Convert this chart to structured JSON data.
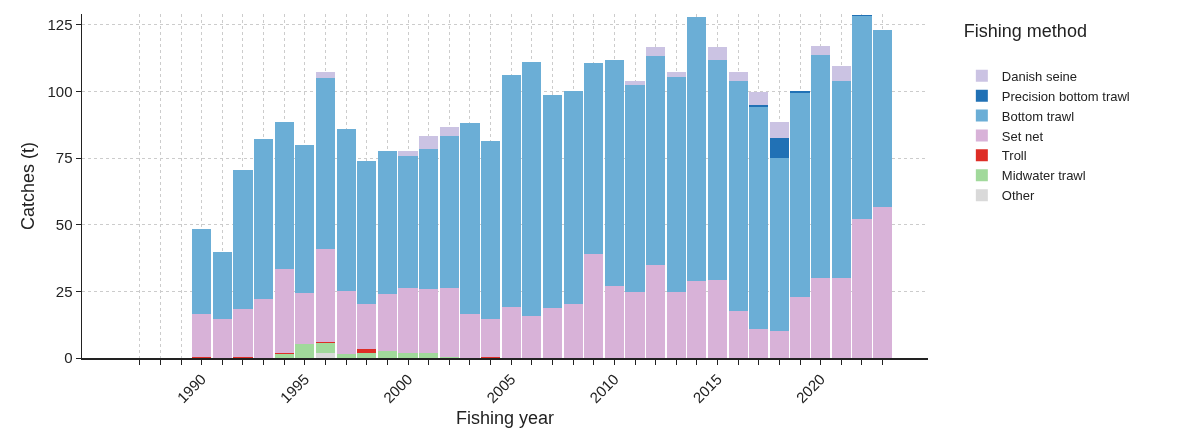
{
  "chart_data": {
    "type": "bar",
    "stacked": true,
    "xlabel": "Fishing year",
    "ylabel": "Catches (t)",
    "legend_title": "Fishing method",
    "legend": "right",
    "grid": true,
    "x": [
      1990,
      1991,
      1992,
      1993,
      1994,
      1995,
      1996,
      1997,
      1998,
      1999,
      2000,
      2001,
      2002,
      2003,
      2004,
      2005,
      2006,
      2007,
      2008,
      2009,
      2010,
      2011,
      2012,
      2013,
      2014,
      2015,
      2016,
      2017,
      2018,
      2019,
      2020,
      2021,
      2022,
      2023
    ],
    "xlim": [
      1984.2,
      2025.2
    ],
    "xticks": [
      {
        "value": 1987,
        "label": null
      },
      {
        "value": 1988,
        "label": null
      },
      {
        "value": 1989,
        "label": null
      },
      1990,
      {
        "value": 1991,
        "label": null
      },
      {
        "value": 1992,
        "label": null
      },
      {
        "value": 1993,
        "label": null
      },
      {
        "value": 1994,
        "label": null
      },
      1995,
      {
        "value": 1996,
        "label": null
      },
      {
        "value": 1997,
        "label": null
      },
      {
        "value": 1998,
        "label": null
      },
      {
        "value": 1999,
        "label": null
      },
      2000,
      {
        "value": 2001,
        "label": null
      },
      {
        "value": 2002,
        "label": null
      },
      {
        "value": 2003,
        "label": null
      },
      {
        "value": 2004,
        "label": null
      },
      2005,
      {
        "value": 2006,
        "label": null
      },
      {
        "value": 2007,
        "label": null
      },
      {
        "value": 2008,
        "label": null
      },
      {
        "value": 2009,
        "label": null
      },
      2010,
      {
        "value": 2011,
        "label": null
      },
      {
        "value": 2012,
        "label": null
      },
      {
        "value": 2013,
        "label": null
      },
      {
        "value": 2014,
        "label": null
      },
      2015,
      {
        "value": 2016,
        "label": null
      },
      {
        "value": 2017,
        "label": null
      },
      {
        "value": 2018,
        "label": null
      },
      {
        "value": 2019,
        "label": null
      },
      2020,
      {
        "value": 2021,
        "label": null
      },
      {
        "value": 2022,
        "label": null
      },
      {
        "value": 2023,
        "label": null
      }
    ],
    "ylim": [
      0,
      129
    ],
    "yticks": [
      0,
      25,
      50,
      75,
      100,
      125
    ],
    "series": [
      {
        "name": "Other",
        "color": "#d9d9d9",
        "values": [
          null,
          null,
          null,
          null,
          null,
          null,
          2,
          null,
          null,
          null,
          null,
          null,
          null,
          null,
          null,
          null,
          null,
          null,
          null,
          null,
          null,
          null,
          null,
          null,
          null,
          null,
          null,
          null,
          null,
          null,
          null,
          null,
          null,
          null
        ]
      },
      {
        "name": "Midwater trawl",
        "color": "#a1d99b",
        "values": [
          null,
          null,
          null,
          null,
          1.5,
          5.4,
          3.5,
          1.5,
          2,
          2.5,
          2,
          2,
          0.5,
          null,
          null,
          null,
          null,
          null,
          null,
          null,
          null,
          null,
          null,
          null,
          null,
          null,
          null,
          null,
          null,
          null,
          null,
          null,
          null,
          null
        ]
      },
      {
        "name": "Troll",
        "color": "#de2d26",
        "values": [
          0.5,
          null,
          0.3,
          null,
          0.5,
          null,
          0.5,
          null,
          1.5,
          null,
          null,
          null,
          null,
          null,
          0.5,
          null,
          null,
          null,
          null,
          null,
          null,
          null,
          null,
          null,
          null,
          null,
          null,
          null,
          null,
          null,
          null,
          null,
          null,
          null
        ]
      },
      {
        "name": "Set net",
        "color": "#d8b2d8",
        "values": [
          16.1,
          14.7,
          17.9,
          22,
          31.5,
          19.1,
          34.7,
          23.7,
          16.6,
          21.4,
          24.1,
          23.7,
          25.8,
          16.5,
          14.2,
          19,
          15.6,
          18.9,
          20.1,
          39.1,
          27,
          24.6,
          34.7,
          24.6,
          28.8,
          29.1,
          17.7,
          11,
          10,
          22.9,
          30.1,
          30.1,
          52.2,
          56.6
        ]
      },
      {
        "name": "Bottom trawl",
        "color": "#6baed6",
        "values": [
          31.6,
          25,
          52.2,
          60.2,
          55,
          55.5,
          64.2,
          60.5,
          53.6,
          53.8,
          49.6,
          52.6,
          56.9,
          71.7,
          66.8,
          87,
          95.3,
          79.9,
          80,
          71.5,
          84.8,
          77.7,
          78.4,
          80.9,
          98.9,
          82.7,
          86.3,
          83,
          65,
          76.5,
          83.7,
          73.7,
          75.9,
          66.3
        ]
      },
      {
        "name": "Precision bottom trawl",
        "color": "#2171b5",
        "values": [
          null,
          null,
          null,
          null,
          null,
          null,
          null,
          null,
          null,
          null,
          null,
          null,
          null,
          null,
          null,
          null,
          null,
          null,
          null,
          null,
          null,
          null,
          null,
          null,
          null,
          null,
          null,
          0.9,
          7.5,
          0.8,
          null,
          null,
          0.4,
          0.2
        ]
      },
      {
        "name": "Danish seine",
        "color": "#cbc3e3",
        "values": [
          null,
          null,
          null,
          null,
          null,
          null,
          2.2,
          null,
          null,
          null,
          2,
          5,
          3.6,
          null,
          null,
          null,
          null,
          null,
          null,
          null,
          null,
          1.7,
          3.7,
          1.6,
          null,
          5,
          3.1,
          4.7,
          5.9,
          null,
          3.1,
          5.7,
          null,
          null
        ]
      }
    ]
  }
}
